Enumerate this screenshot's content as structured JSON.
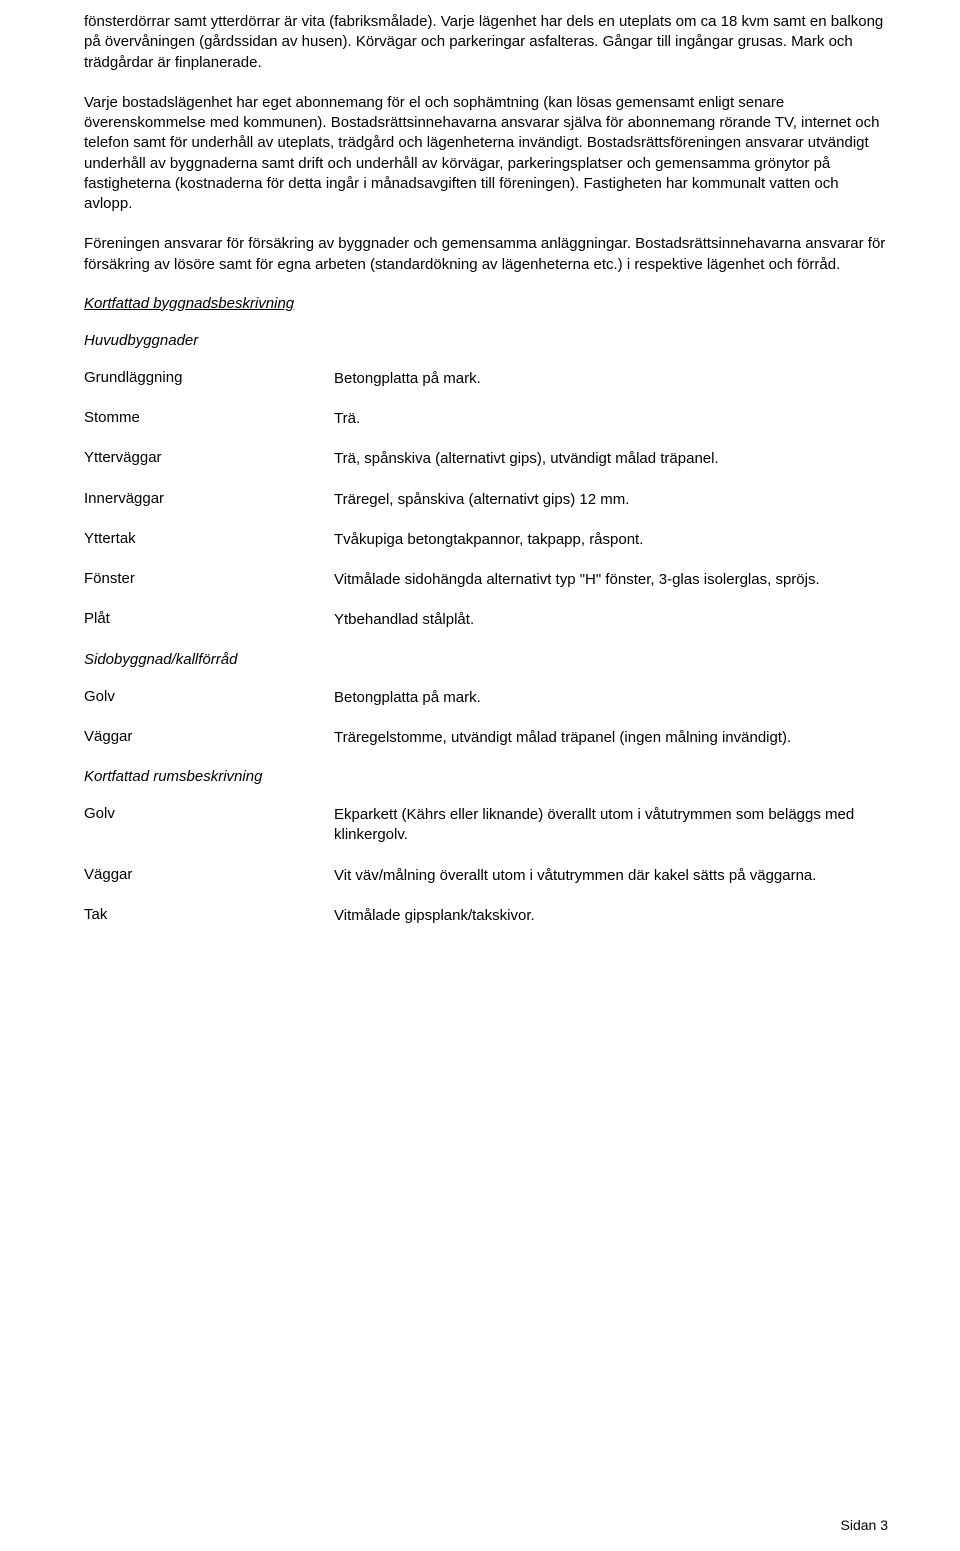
{
  "paragraphs": {
    "p1": "fönsterdörrar samt ytterdörrar är vita (fabriksmålade). Varje lägenhet har dels en uteplats om ca 18 kvm samt en balkong på övervåningen (gårdssidan av husen). Körvägar och parkeringar asfalteras. Gångar till ingångar grusas. Mark och trädgårdar är finplanerade.",
    "p2": "Varje bostadslägenhet har eget abonnemang för el och sophämtning (kan lösas gemensamt enligt senare överenskommelse med kommunen). Bostadsrättsinnehavarna ansvarar själva för abonnemang rörande TV, internet och telefon samt för underhåll av uteplats, trädgård och lägenheterna invändigt. Bostadsrättsföreningen ansvarar utvändigt underhåll av byggnaderna samt drift och underhåll av körvägar, parkeringsplatser och gemensamma grönytor på fastigheterna (kostnaderna för detta ingår i månadsavgiften till föreningen). Fastigheten har kommunalt vatten och avlopp.",
    "p3": "Föreningen ansvarar för försäkring av byggnader och gemensamma anläggningar. Bostadsrättsinnehavarna ansvarar för försäkring av lösöre samt för egna arbeten (standardökning av lägenheterna etc.) i respektive lägenhet och förråd."
  },
  "headings": {
    "building_desc": "Kortfattad byggnadsbeskrivning",
    "main_buildings": "Huvudbyggnader",
    "side_building": "Sidobyggnad/kallförråd",
    "room_desc": "Kortfattad rumsbeskrivning"
  },
  "main_specs": [
    {
      "label": "Grundläggning",
      "value": "Betongplatta på mark."
    },
    {
      "label": "Stomme",
      "value": "Trä."
    },
    {
      "label": "Ytterväggar",
      "value": "Trä, spånskiva (alternativt gips), utvändigt målad träpanel."
    },
    {
      "label": "Innerväggar",
      "value": "Träregel, spånskiva (alternativt gips) 12 mm."
    },
    {
      "label": "Yttertak",
      "value": "Tvåkupiga betongtakpannor, takpapp, råspont."
    },
    {
      "label": "Fönster",
      "value": "Vitmålade sidohängda alternativt typ \"H\" fönster, 3-glas isolerglas, spröjs."
    },
    {
      "label": "Plåt",
      "value": "Ytbehandlad stålplåt."
    }
  ],
  "side_specs": [
    {
      "label": "Golv",
      "value": "Betongplatta på mark."
    },
    {
      "label": "Väggar",
      "value": "Träregelstomme, utvändigt målad träpanel (ingen målning invändigt)."
    }
  ],
  "room_specs": [
    {
      "label": "Golv",
      "value": "Ekparkett (Kährs eller liknande) överallt utom i våtutrymmen som beläggs med klinkergolv."
    },
    {
      "label": "Väggar",
      "value": "Vit väv/målning överallt utom i våtutrymmen där kakel sätts på väggarna."
    },
    {
      "label": "Tak",
      "value": "Vitmålade gipsplank/takskivor."
    }
  ],
  "footer": "Sidan 3"
}
